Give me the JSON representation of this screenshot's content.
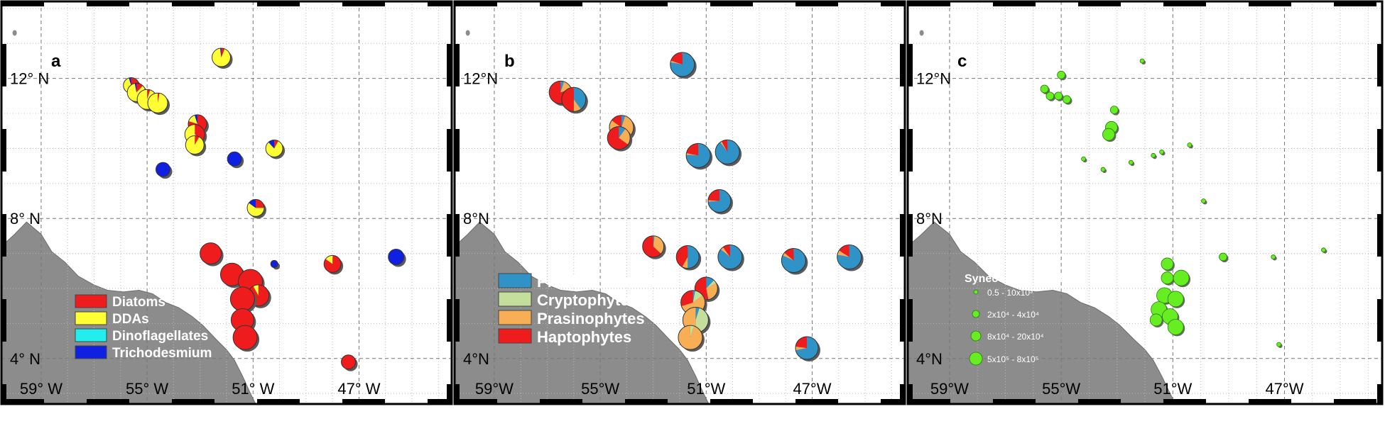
{
  "figure": {
    "background": "#ffffff",
    "land_color": "#8c8c8c",
    "ocean_color": "#ffffff"
  },
  "chart_data": [
    {
      "type": "scatter",
      "subtype": "pie-map",
      "panel_label": "a",
      "x_ticks": [
        {
          "lon": -59,
          "label": "59° W"
        },
        {
          "lon": -55,
          "label": "55° W"
        },
        {
          "lon": -51,
          "label": "51° W"
        },
        {
          "lon": -47,
          "label": "47° W"
        }
      ],
      "y_ticks": [
        {
          "lat": 12,
          "label": "12° N"
        },
        {
          "lat": 8,
          "label": "8° N"
        },
        {
          "lat": 4,
          "label": "4° N"
        }
      ],
      "legend": {
        "placement": "bottom-left",
        "entries": [
          {
            "name": "Diatoms",
            "color": "#ee1c1c"
          },
          {
            "name": "DDAs",
            "color": "#ffff33"
          },
          {
            "name": "Dinoflagellates",
            "color": "#22eeee"
          },
          {
            "name": "Trichodesmium",
            "color": "#1020e0"
          }
        ]
      },
      "series_colors": [
        "#ee1c1c",
        "#ffff33",
        "#22eeee",
        "#1020e0"
      ],
      "points": [
        {
          "lon": -55.6,
          "lat": 11.8,
          "r": 11,
          "f": [
            0.25,
            0.7,
            0,
            0.05
          ]
        },
        {
          "lon": -55.4,
          "lat": 11.6,
          "r": 13,
          "f": [
            0.12,
            0.85,
            0,
            0.03
          ]
        },
        {
          "lon": -55.0,
          "lat": 11.4,
          "r": 14,
          "f": [
            0.05,
            0.95,
            0,
            0
          ]
        },
        {
          "lon": -54.6,
          "lat": 11.3,
          "r": 14,
          "f": [
            0.03,
            0.97,
            0,
            0
          ]
        },
        {
          "lon": -52.2,
          "lat": 12.6,
          "r": 13,
          "f": [
            0.06,
            0.92,
            0,
            0.02
          ]
        },
        {
          "lon": -53.1,
          "lat": 10.7,
          "r": 13,
          "f": [
            0.8,
            0.15,
            0,
            0.05
          ]
        },
        {
          "lon": -53.2,
          "lat": 10.4,
          "r": 14,
          "f": [
            0.35,
            0.65,
            0,
            0
          ]
        },
        {
          "lon": -53.2,
          "lat": 10.1,
          "r": 13,
          "f": [
            0.08,
            0.92,
            0,
            0
          ]
        },
        {
          "lon": -54.4,
          "lat": 9.4,
          "r": 10,
          "f": [
            0,
            0,
            0,
            1
          ]
        },
        {
          "lon": -51.7,
          "lat": 9.7,
          "r": 10,
          "f": [
            0,
            0,
            0,
            1
          ]
        },
        {
          "lon": -50.2,
          "lat": 10.0,
          "r": 12,
          "f": [
            0.08,
            0.8,
            0,
            0.12
          ]
        },
        {
          "lon": -50.9,
          "lat": 8.3,
          "r": 12,
          "f": [
            0.25,
            0.6,
            0,
            0.15
          ]
        },
        {
          "lon": -52.6,
          "lat": 7.0,
          "r": 15,
          "f": [
            1,
            0,
            0,
            0
          ]
        },
        {
          "lon": -51.8,
          "lat": 6.4,
          "r": 16,
          "f": [
            1,
            0,
            0,
            0
          ]
        },
        {
          "lon": -51.1,
          "lat": 6.2,
          "r": 17,
          "f": [
            1,
            0,
            0,
            0
          ]
        },
        {
          "lon": -50.8,
          "lat": 5.8,
          "r": 15,
          "f": [
            0.92,
            0.08,
            0,
            0
          ]
        },
        {
          "lon": -51.4,
          "lat": 5.7,
          "r": 17,
          "f": [
            1,
            0,
            0,
            0
          ]
        },
        {
          "lon": -51.4,
          "lat": 5.1,
          "r": 16,
          "f": [
            1,
            0,
            0,
            0
          ]
        },
        {
          "lon": -51.3,
          "lat": 4.6,
          "r": 17,
          "f": [
            1,
            0,
            0,
            0
          ]
        },
        {
          "lon": -50.2,
          "lat": 6.7,
          "r": 5,
          "f": [
            0,
            0,
            0,
            1
          ]
        },
        {
          "lon": -48.0,
          "lat": 6.7,
          "r": 12,
          "f": [
            0.85,
            0.15,
            0,
            0
          ]
        },
        {
          "lon": -45.6,
          "lat": 6.9,
          "r": 11,
          "f": [
            0,
            0,
            0,
            1
          ]
        },
        {
          "lon": -47.4,
          "lat": 3.9,
          "r": 10,
          "f": [
            1,
            0,
            0,
            0
          ]
        }
      ]
    },
    {
      "type": "scatter",
      "subtype": "pie-map",
      "panel_label": "b",
      "x_ticks": [
        {
          "lon": -59,
          "label": "59°W"
        },
        {
          "lon": -55,
          "label": "55°W"
        },
        {
          "lon": -51,
          "label": "51°W"
        },
        {
          "lon": -47,
          "label": "47°W"
        }
      ],
      "y_ticks": [
        {
          "lat": 12,
          "label": "12°N"
        },
        {
          "lat": 8,
          "label": "8°N"
        },
        {
          "lat": 4,
          "label": "4°N"
        }
      ],
      "legend": {
        "placement": "bottom-left",
        "entries": [
          {
            "name": "Prochlorococcus",
            "color": "#2f93c8"
          },
          {
            "name": "Cryptophytes",
            "color": "#c4de9c"
          },
          {
            "name": "Prasinophytes",
            "color": "#f7ae55"
          },
          {
            "name": "Haptophytes",
            "color": "#ee1c1c"
          }
        ]
      },
      "series_colors": [
        "#2f93c8",
        "#c4de9c",
        "#f7ae55",
        "#ee1c1c"
      ],
      "points": [
        {
          "lon": -56.5,
          "lat": 11.6,
          "r": 16,
          "f": [
            0.05,
            0,
            0.15,
            0.8
          ]
        },
        {
          "lon": -56.0,
          "lat": 11.4,
          "r": 17,
          "f": [
            0.4,
            0,
            0.1,
            0.5
          ]
        },
        {
          "lon": -54.2,
          "lat": 10.6,
          "r": 17,
          "f": [
            0.05,
            0,
            0.8,
            0.15
          ]
        },
        {
          "lon": -54.3,
          "lat": 10.3,
          "r": 16,
          "f": [
            0.1,
            0,
            0.25,
            0.65
          ]
        },
        {
          "lon": -51.9,
          "lat": 12.4,
          "r": 17,
          "f": [
            0.78,
            0,
            0.02,
            0.2
          ]
        },
        {
          "lon": -51.3,
          "lat": 9.8,
          "r": 17,
          "f": [
            0.76,
            0,
            0.02,
            0.22
          ]
        },
        {
          "lon": -50.2,
          "lat": 9.9,
          "r": 17,
          "f": [
            0.9,
            0,
            0.02,
            0.08
          ]
        },
        {
          "lon": -50.5,
          "lat": 8.5,
          "r": 16,
          "f": [
            0.74,
            0,
            0.02,
            0.24
          ]
        },
        {
          "lon": -53.0,
          "lat": 7.2,
          "r": 15,
          "f": [
            0.02,
            0,
            0.35,
            0.63
          ]
        },
        {
          "lon": -51.7,
          "lat": 6.9,
          "r": 16,
          "f": [
            0.5,
            0,
            0.08,
            0.42
          ]
        },
        {
          "lon": -51.0,
          "lat": 6.0,
          "r": 16,
          "f": [
            0.12,
            0.05,
            0.3,
            0.53
          ]
        },
        {
          "lon": -51.5,
          "lat": 5.6,
          "r": 17,
          "f": [
            0.03,
            0.12,
            0.55,
            0.3
          ]
        },
        {
          "lon": -51.4,
          "lat": 5.1,
          "r": 18,
          "f": [
            0.05,
            0.45,
            0.5,
            0
          ]
        },
        {
          "lon": -51.6,
          "lat": 4.6,
          "r": 17,
          "f": [
            0,
            0.05,
            0.95,
            0
          ]
        },
        {
          "lon": -50.1,
          "lat": 6.9,
          "r": 17,
          "f": [
            0.86,
            0,
            0.04,
            0.1
          ]
        },
        {
          "lon": -47.7,
          "lat": 6.8,
          "r": 17,
          "f": [
            0.82,
            0,
            0.04,
            0.14
          ]
        },
        {
          "lon": -45.6,
          "lat": 6.9,
          "r": 17,
          "f": [
            0.78,
            0,
            0.06,
            0.16
          ]
        },
        {
          "lon": -47.2,
          "lat": 4.3,
          "r": 16,
          "f": [
            0.72,
            0,
            0.05,
            0.23
          ]
        }
      ]
    },
    {
      "type": "scatter",
      "subtype": "bubble-map",
      "panel_label": "c",
      "x_ticks": [
        {
          "lon": -59,
          "label": "59°W"
        },
        {
          "lon": -55,
          "label": "55°W"
        },
        {
          "lon": -51,
          "label": "51°W"
        },
        {
          "lon": -47,
          "label": "47°W"
        }
      ],
      "y_ticks": [
        {
          "lat": 12,
          "label": "12°N"
        },
        {
          "lat": 8,
          "label": "8°N"
        },
        {
          "lat": 4,
          "label": "4°N"
        }
      ],
      "legend": {
        "placement": "bottom-left",
        "title": "Synecoccus cells/L",
        "entries": [
          {
            "label": "0.5 - 10x10³",
            "size_class": 1
          },
          {
            "label": "2x10⁴ - 4x10⁴",
            "size_class": 2
          },
          {
            "label": "8x10⁴ - 20x10⁴",
            "size_class": 3
          },
          {
            "label": "5x10⁵ - 8x10⁵",
            "size_class": 4
          }
        ]
      },
      "marker_color": "#66ee22",
      "points": [
        {
          "lon": -55.6,
          "lat": 11.7,
          "size_class": 2
        },
        {
          "lon": -55.4,
          "lat": 11.5,
          "size_class": 2
        },
        {
          "lon": -55.1,
          "lat": 11.5,
          "size_class": 2
        },
        {
          "lon": -54.8,
          "lat": 11.4,
          "size_class": 2
        },
        {
          "lon": -55.0,
          "lat": 12.1,
          "size_class": 2
        },
        {
          "lon": -53.1,
          "lat": 11.1,
          "size_class": 2
        },
        {
          "lon": -53.2,
          "lat": 10.6,
          "size_class": 3
        },
        {
          "lon": -53.3,
          "lat": 10.4,
          "size_class": 3
        },
        {
          "lon": -52.1,
          "lat": 12.5,
          "size_class": 1
        },
        {
          "lon": -54.2,
          "lat": 9.7,
          "size_class": 1
        },
        {
          "lon": -53.5,
          "lat": 9.4,
          "size_class": 1
        },
        {
          "lon": -52.5,
          "lat": 9.6,
          "size_class": 1
        },
        {
          "lon": -51.7,
          "lat": 9.8,
          "size_class": 1
        },
        {
          "lon": -51.4,
          "lat": 9.9,
          "size_class": 1
        },
        {
          "lon": -50.4,
          "lat": 10.1,
          "size_class": 1
        },
        {
          "lon": -49.9,
          "lat": 8.5,
          "size_class": 1
        },
        {
          "lon": -49.2,
          "lat": 6.9,
          "size_class": 2
        },
        {
          "lon": -51.2,
          "lat": 6.3,
          "size_class": 3
        },
        {
          "lon": -50.7,
          "lat": 6.3,
          "size_class": 4
        },
        {
          "lon": -51.3,
          "lat": 5.8,
          "size_class": 4
        },
        {
          "lon": -50.9,
          "lat": 5.7,
          "size_class": 4
        },
        {
          "lon": -51.5,
          "lat": 5.4,
          "size_class": 4
        },
        {
          "lon": -51.1,
          "lat": 5.2,
          "size_class": 4
        },
        {
          "lon": -50.9,
          "lat": 4.9,
          "size_class": 4
        },
        {
          "lon": -51.6,
          "lat": 5.1,
          "size_class": 3
        },
        {
          "lon": -51.2,
          "lat": 6.7,
          "size_class": 3
        },
        {
          "lon": -47.4,
          "lat": 6.9,
          "size_class": 1
        },
        {
          "lon": -45.6,
          "lat": 7.1,
          "size_class": 1
        },
        {
          "lon": -47.2,
          "lat": 4.4,
          "size_class": 1
        }
      ]
    }
  ]
}
